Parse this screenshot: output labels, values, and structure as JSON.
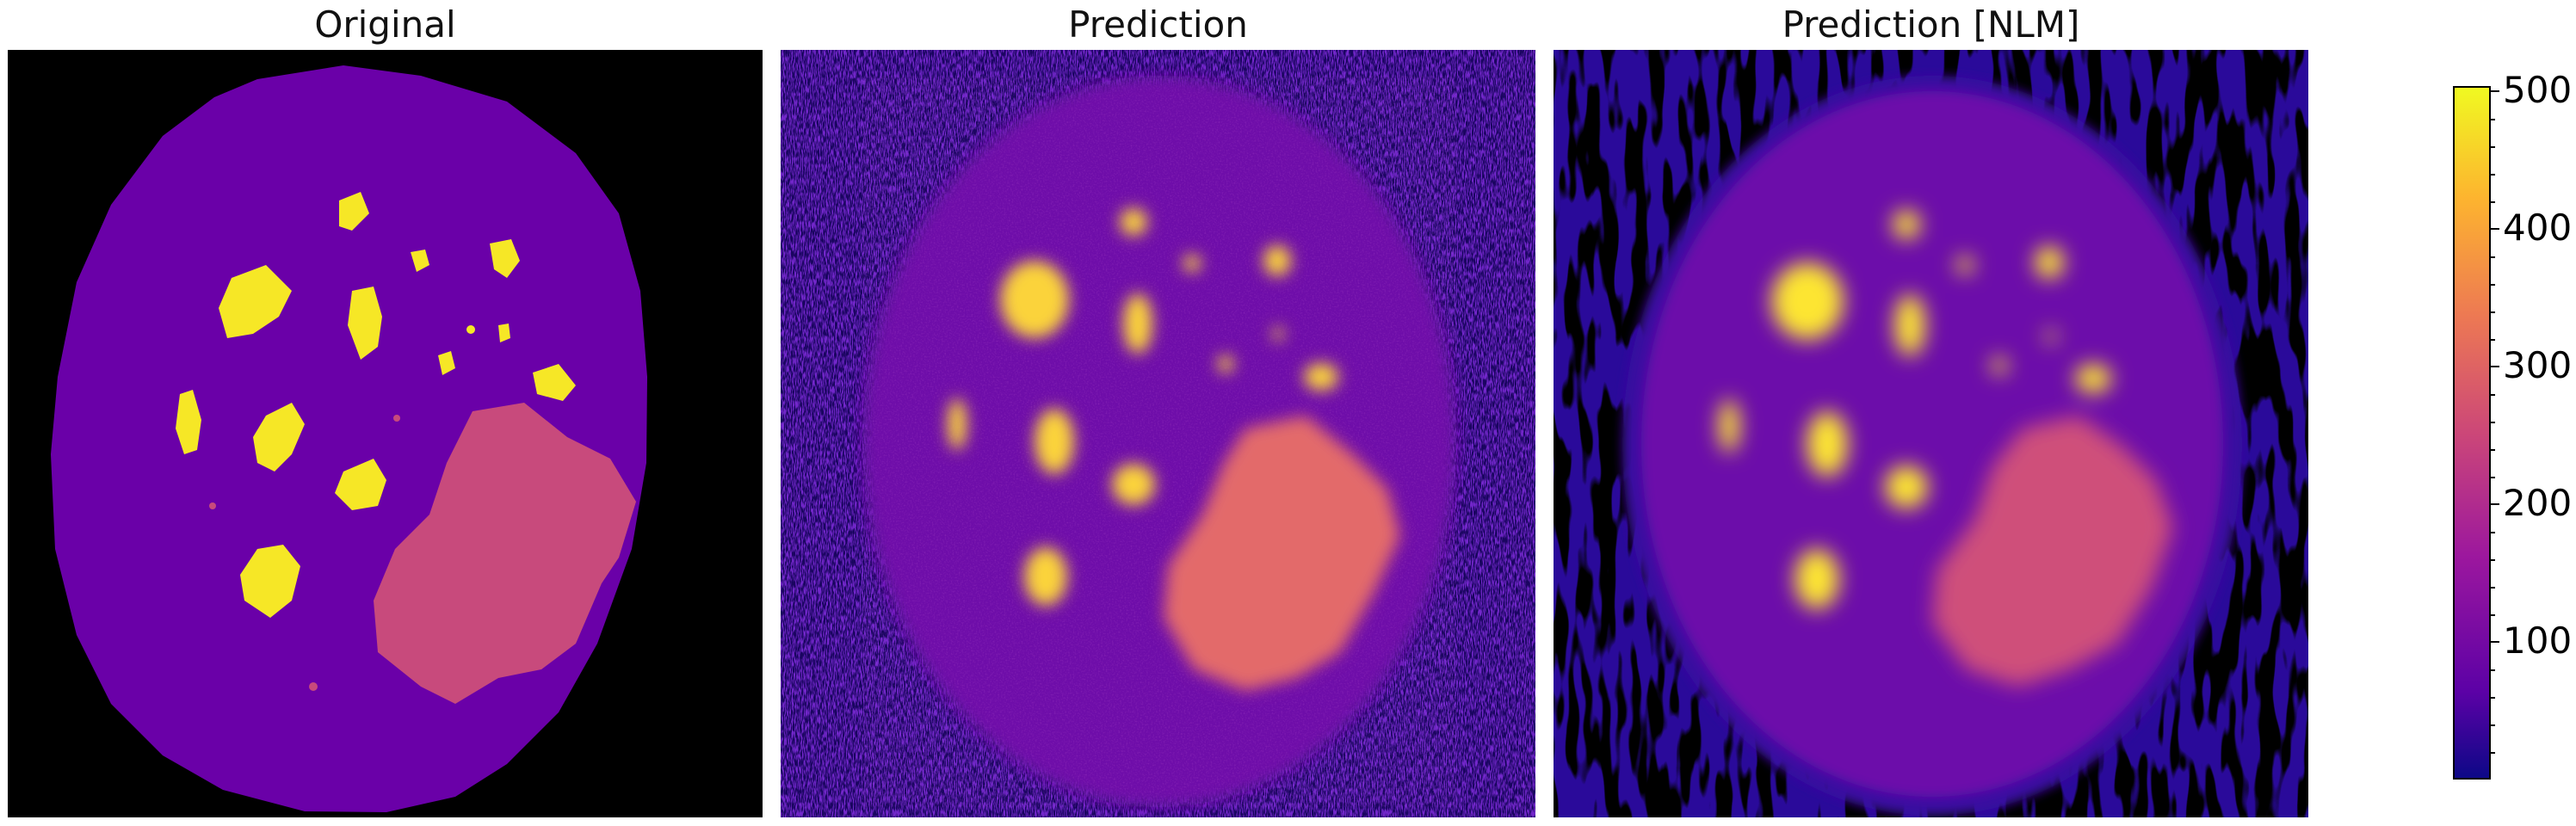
{
  "panels": [
    {
      "title": "Original"
    },
    {
      "title": "Prediction"
    },
    {
      "title": "Prediction [NLM]"
    }
  ],
  "colorbar": {
    "colormap": "plasma",
    "min": 0,
    "max": 500,
    "ticks": [
      "500",
      "400",
      "300",
      "200",
      "100"
    ]
  },
  "colors": {
    "background_dark": "#000000",
    "body_purple": "#6a00a8",
    "lesion_pink": "#c84a7c",
    "hot_yellow": "#f6e726",
    "noise_blue": "#2c0594"
  }
}
